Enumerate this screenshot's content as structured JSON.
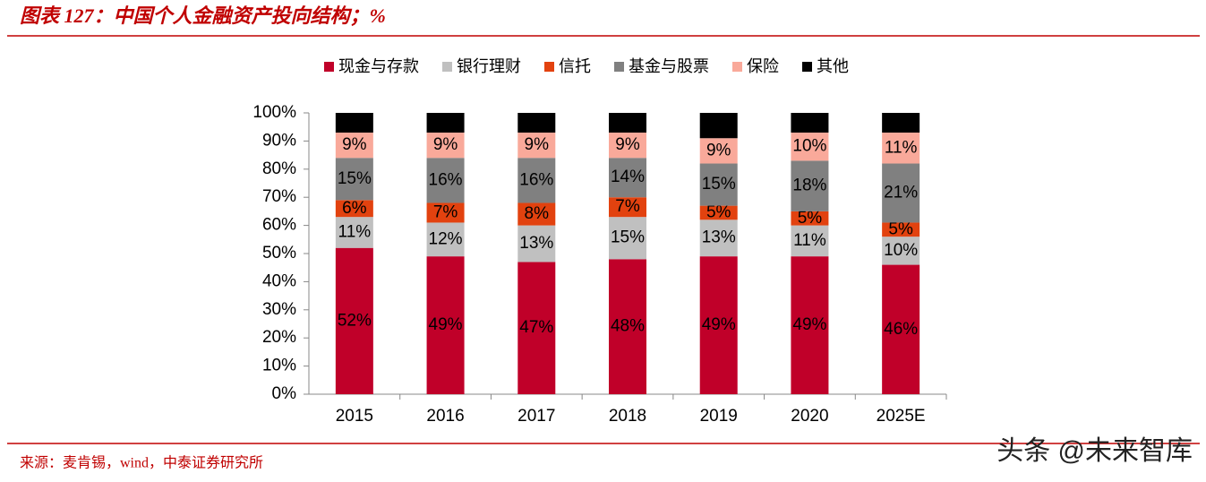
{
  "chart_data": {
    "type": "stacked_bar",
    "title": "图表 127：中国个人金融资产投向结构；%",
    "source": "来源：麦肯锡，wind，中泰证券研究所",
    "watermark": "头条 @未来智库",
    "categories": [
      "2015",
      "2016",
      "2017",
      "2018",
      "2019",
      "2020",
      "2025E"
    ],
    "series": [
      {
        "name": "现金与存款",
        "color": "#c00029",
        "values": [
          52,
          49,
          47,
          48,
          49,
          49,
          46
        ],
        "value_labels": [
          "52%",
          "49%",
          "47%",
          "48%",
          "49%",
          "49%",
          "46%"
        ]
      },
      {
        "name": "银行理财",
        "color": "#c0c0c0",
        "values": [
          11,
          12,
          13,
          15,
          13,
          11,
          10
        ],
        "value_labels": [
          "11%",
          "12%",
          "13%",
          "15%",
          "13%",
          "11%",
          "10%"
        ]
      },
      {
        "name": "信托",
        "color": "#e2420f",
        "values": [
          6,
          7,
          8,
          7,
          5,
          5,
          5
        ],
        "value_labels": [
          "6%",
          "7%",
          "8%",
          "7%",
          "5%",
          "5%",
          "5%"
        ]
      },
      {
        "name": "基金与股票",
        "color": "#808080",
        "values": [
          15,
          16,
          16,
          14,
          15,
          18,
          21
        ],
        "value_labels": [
          "15%",
          "16%",
          "16%",
          "14%",
          "15%",
          "18%",
          "21%"
        ]
      },
      {
        "name": "保险",
        "color": "#f9a99a",
        "values": [
          9,
          9,
          9,
          9,
          9,
          10,
          11
        ],
        "value_labels": [
          "9%",
          "9%",
          "9%",
          "9%",
          "9%",
          "10%",
          "11%"
        ]
      },
      {
        "name": "其他",
        "color": "#000000",
        "values": [
          7,
          7,
          7,
          7,
          9,
          7,
          7
        ]
      }
    ],
    "ylim": [
      0,
      100
    ],
    "yticks": [
      {
        "value": 0,
        "label": "0%"
      },
      {
        "value": 10,
        "label": "10%"
      },
      {
        "value": 20,
        "label": "20%"
      },
      {
        "value": 30,
        "label": "30%"
      },
      {
        "value": 40,
        "label": "40%"
      },
      {
        "value": 50,
        "label": "50%"
      },
      {
        "value": 60,
        "label": "60%"
      },
      {
        "value": 70,
        "label": "70%"
      },
      {
        "value": 80,
        "label": "80%"
      },
      {
        "value": 90,
        "label": "90%"
      },
      {
        "value": 100,
        "label": "100%"
      }
    ],
    "grid": false
  }
}
